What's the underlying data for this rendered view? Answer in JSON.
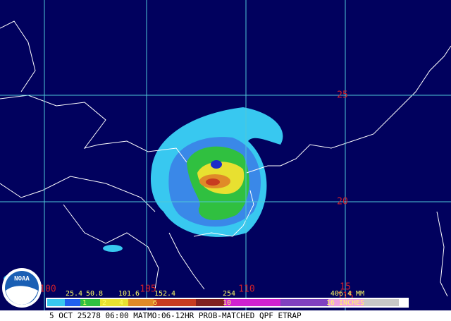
{
  "map": {
    "lat_labels": [
      "25",
      "20",
      "15"
    ],
    "lon_labels": [
      "100",
      "105",
      "110",
      "115"
    ],
    "legend": {
      "mm_labels": [
        "25.4",
        "50.8",
        "101.6",
        "152.4",
        "254",
        "406.4 MM"
      ],
      "inch_labels": [
        "1",
        "2",
        "4",
        "6",
        "10",
        "16 INCHES"
      ]
    },
    "logo": "NOAA",
    "footer": "5 OCT 25278 06:00 MATMO:06-12HR PROB-MATCHED QPF ETRAP"
  }
}
